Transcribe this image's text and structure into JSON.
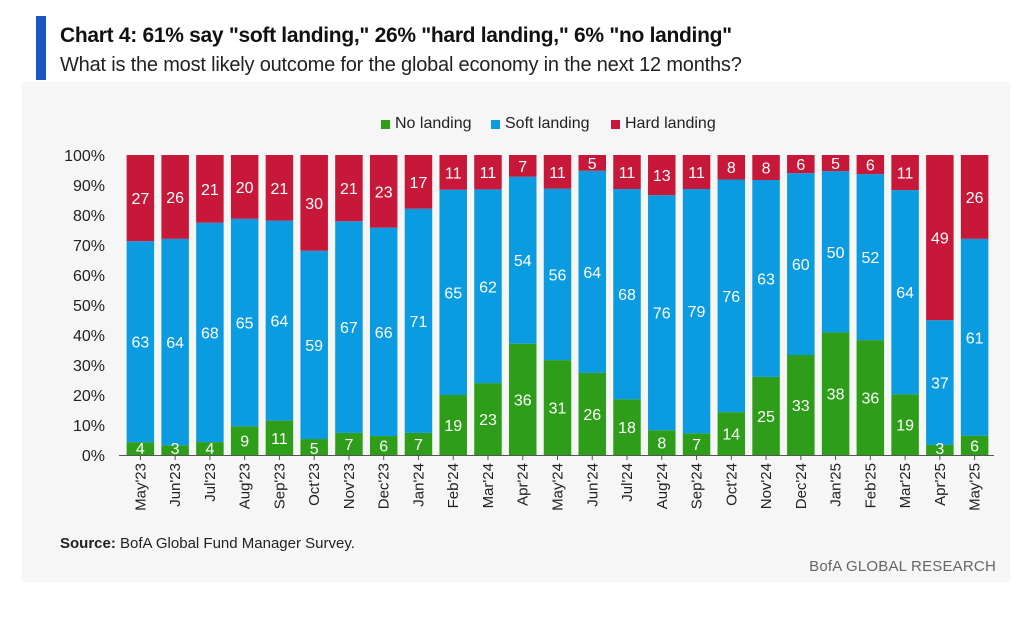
{
  "title": "Chart 4: 61% say \"soft landing,\" 26% \"hard landing,\" 6% \"no landing\"",
  "subtitle": "What is the most likely outcome for the global economy in the next 12 months?",
  "source_label": "Source:",
  "source_text": " BofA Global Fund Manager Survey.",
  "brand": "BofA GLOBAL RESEARCH",
  "colors": {
    "no_landing": "#2e9e1a",
    "soft_landing": "#0a9be0",
    "hard_landing": "#c8183a",
    "accent": "#1a56c4"
  },
  "chart_data": {
    "type": "bar",
    "stacked": true,
    "categories": [
      "May'23",
      "Jun'23",
      "Jul'23",
      "Aug'23",
      "Sep'23",
      "Oct'23",
      "Nov'23",
      "Dec'23",
      "Jan'24",
      "Feb'24",
      "Mar'24",
      "Apr'24",
      "May'24",
      "Jun'24",
      "Jul'24",
      "Aug'24",
      "Sep'24",
      "Oct'24",
      "Nov'24",
      "Dec'24",
      "Jan'25",
      "Feb'25",
      "Mar'25",
      "Apr'25",
      "May'25"
    ],
    "series": [
      {
        "name": "No landing",
        "values": [
          4,
          3,
          4,
          9,
          11,
          5,
          7,
          6,
          7,
          19,
          23,
          36,
          31,
          26,
          18,
          8,
          7,
          14,
          25,
          33,
          38,
          36,
          19,
          3,
          6
        ]
      },
      {
        "name": "Soft landing",
        "values": [
          63,
          64,
          68,
          65,
          64,
          59,
          67,
          66,
          71,
          65,
          62,
          54,
          56,
          64,
          68,
          76,
          79,
          76,
          63,
          60,
          50,
          52,
          64,
          37,
          61
        ]
      },
      {
        "name": "Hard landing",
        "values": [
          27,
          26,
          21,
          20,
          21,
          30,
          21,
          23,
          17,
          11,
          11,
          7,
          11,
          5,
          11,
          13,
          11,
          8,
          8,
          6,
          5,
          6,
          11,
          49,
          26
        ]
      }
    ],
    "yticks": [
      "0%",
      "10%",
      "20%",
      "30%",
      "40%",
      "50%",
      "60%",
      "70%",
      "80%",
      "90%",
      "100%"
    ],
    "ylim": [
      0,
      100
    ],
    "legend_position": "top",
    "grid": false
  }
}
